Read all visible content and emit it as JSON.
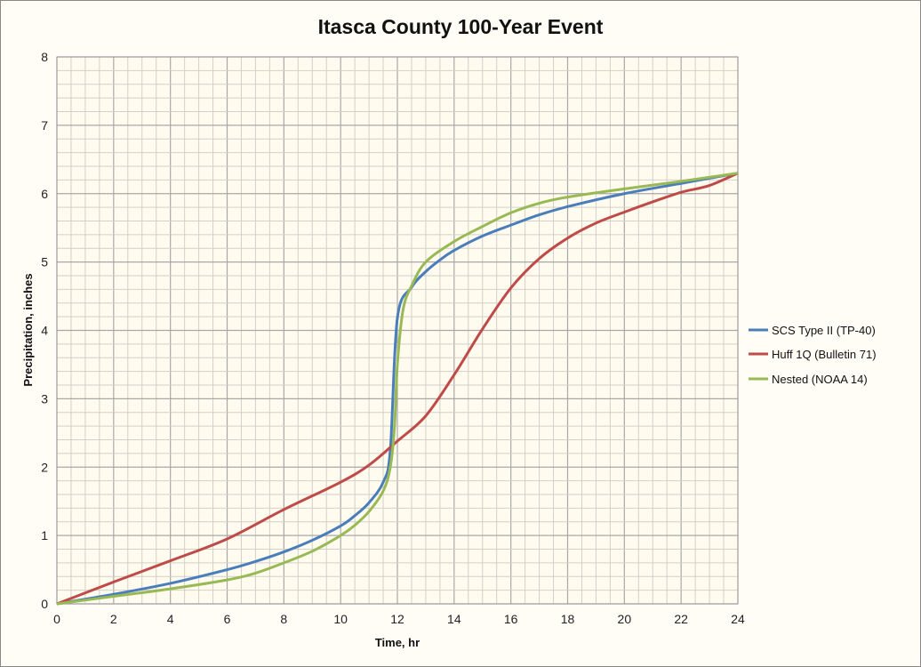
{
  "chart_data": {
    "type": "line",
    "title": "Itasca County 100-Year Event",
    "xlabel": "Time, hr",
    "ylabel": "Precipitation, inches",
    "xlim": [
      0,
      24
    ],
    "ylim": [
      0,
      8
    ],
    "xticks": [
      0,
      2,
      4,
      6,
      8,
      10,
      12,
      14,
      16,
      18,
      20,
      22,
      24
    ],
    "yticks": [
      0,
      1,
      2,
      3,
      4,
      5,
      6,
      7,
      8
    ],
    "minor_grid": {
      "x_step": 0.5,
      "y_step": 0.2
    },
    "grid": true,
    "legend_position": "right",
    "series": [
      {
        "name": "SCS Type II (TP-40)",
        "color": "#4a7ebb",
        "x": [
          0,
          2,
          4,
          6,
          7,
          8,
          9,
          10,
          10.5,
          11,
          11.5,
          11.75,
          12,
          12.5,
          13,
          13.5,
          14,
          15,
          16,
          17,
          18,
          20,
          22,
          24
        ],
        "y": [
          0,
          0.14,
          0.3,
          0.5,
          0.62,
          0.76,
          0.93,
          1.14,
          1.29,
          1.48,
          1.78,
          2.25,
          4.18,
          4.63,
          4.86,
          5.03,
          5.17,
          5.38,
          5.54,
          5.69,
          5.81,
          6.0,
          6.15,
          6.3
        ]
      },
      {
        "name": "Huff 1Q (Bulletin 71)",
        "color": "#be4b48",
        "x": [
          0,
          2,
          4,
          6,
          8,
          10,
          11,
          12,
          13,
          14,
          15,
          16,
          17,
          18,
          19,
          20,
          21,
          22,
          23,
          24
        ],
        "y": [
          0,
          0.32,
          0.63,
          0.95,
          1.38,
          1.78,
          2.03,
          2.38,
          2.75,
          3.35,
          4.02,
          4.62,
          5.05,
          5.35,
          5.57,
          5.73,
          5.88,
          6.02,
          6.12,
          6.3
        ]
      },
      {
        "name": "Nested (NOAA 14)",
        "color": "#98b954",
        "x": [
          0,
          2,
          4,
          6,
          7,
          8,
          9,
          10,
          10.5,
          11,
          11.5,
          11.75,
          11.9,
          12,
          12.2,
          12.5,
          13,
          14,
          15,
          16,
          17,
          18,
          20,
          22,
          24
        ],
        "y": [
          0,
          0.11,
          0.22,
          0.35,
          0.45,
          0.6,
          0.77,
          1.0,
          1.15,
          1.35,
          1.65,
          2.0,
          2.6,
          3.5,
          4.3,
          4.65,
          5.0,
          5.3,
          5.52,
          5.72,
          5.86,
          5.95,
          6.07,
          6.18,
          6.3
        ]
      }
    ]
  }
}
